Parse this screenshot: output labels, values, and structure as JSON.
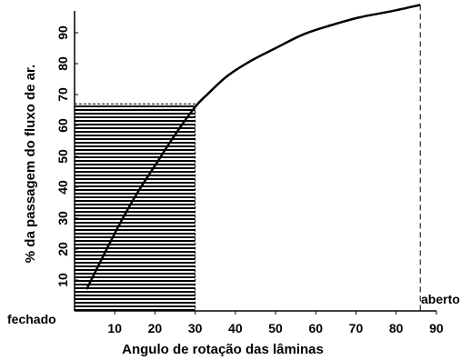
{
  "chart_data": {
    "type": "line",
    "xlabel": "Angulo de rotação das lâminas",
    "ylabel": "% da passagem do fluxo de ar.",
    "xlim": [
      0,
      95
    ],
    "ylim": [
      0,
      100
    ],
    "x_ticks": [
      10,
      20,
      30,
      40,
      50,
      60,
      70,
      80,
      90
    ],
    "y_ticks": [
      10,
      20,
      30,
      40,
      50,
      60,
      70,
      80,
      90
    ],
    "x_min_label": "fechado",
    "x_max_label": "aberto",
    "series": [
      {
        "x": [
          3,
          8,
          12,
          16,
          20,
          25,
          30,
          33,
          38,
          44,
          50,
          57,
          64,
          71,
          79,
          86
        ],
        "y": [
          7,
          20,
          30,
          39,
          47,
          57,
          66,
          70,
          76,
          81,
          85,
          89.5,
          92.5,
          95,
          97,
          99
        ]
      }
    ],
    "shaded_region": {
      "x_start": 0,
      "x_end": 30,
      "y_top": 67
    },
    "reference_line_x": 86,
    "grid": false
  }
}
